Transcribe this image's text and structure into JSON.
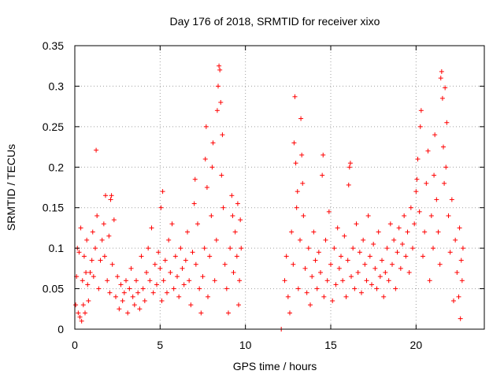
{
  "chart_data": {
    "type": "scatter",
    "title": "Day 176 of 2018, SRMTID for receiver xixo",
    "xlabel": "GPS time / hours",
    "ylabel": "SRMTID / TECUs",
    "xlim": [
      0,
      24
    ],
    "ylim": [
      0,
      0.35
    ],
    "xticks": [
      0,
      5,
      10,
      15,
      20
    ],
    "xtick_labels": [
      "0",
      "5",
      "10",
      "15",
      "20"
    ],
    "yticks": [
      0,
      0.05,
      0.1,
      0.15,
      0.2,
      0.25,
      0.3,
      0.35
    ],
    "ytick_labels": [
      "0",
      "0.05",
      "0.1",
      "0.15",
      "0.2",
      "0.25",
      "0.3",
      "0.35"
    ],
    "grid": true,
    "marker": "+",
    "color": "#ff0000",
    "series": [
      {
        "name": "SRMTID",
        "points": [
          [
            0.05,
            0.03
          ],
          [
            0.1,
            0.065
          ],
          [
            0.15,
            0.1
          ],
          [
            0.2,
            0.02
          ],
          [
            0.25,
            0.095
          ],
          [
            0.3,
            0.015
          ],
          [
            0.35,
            0.125
          ],
          [
            0.4,
            0.01
          ],
          [
            0.45,
            0.06
          ],
          [
            0.5,
            0.03
          ],
          [
            0.55,
            0.09
          ],
          [
            0.6,
            0.02
          ],
          [
            0.65,
            0.07
          ],
          [
            0.7,
            0.11
          ],
          [
            0.75,
            0.055
          ],
          [
            0.8,
            0.035
          ],
          [
            0.9,
            0.07
          ],
          [
            1.0,
            0.085
          ],
          [
            1.05,
            0.12
          ],
          [
            1.1,
            0.065
          ],
          [
            1.2,
            0.1
          ],
          [
            1.25,
            0.221
          ],
          [
            1.3,
            0.14
          ],
          [
            1.4,
            0.05
          ],
          [
            1.5,
            0.085
          ],
          [
            1.6,
            0.11
          ],
          [
            1.7,
            0.13
          ],
          [
            1.75,
            0.09
          ],
          [
            1.8,
            0.165
          ],
          [
            1.9,
            0.06
          ],
          [
            2.0,
            0.115
          ],
          [
            2.05,
            0.045
          ],
          [
            2.1,
            0.16
          ],
          [
            2.15,
            0.165
          ],
          [
            2.2,
            0.08
          ],
          [
            2.3,
            0.135
          ],
          [
            2.4,
            0.04
          ],
          [
            2.5,
            0.065
          ],
          [
            2.6,
            0.025
          ],
          [
            2.7,
            0.055
          ],
          [
            2.8,
            0.035
          ],
          [
            2.9,
            0.045
          ],
          [
            3.0,
            0.06
          ],
          [
            3.1,
            0.02
          ],
          [
            3.2,
            0.05
          ],
          [
            3.3,
            0.075
          ],
          [
            3.4,
            0.04
          ],
          [
            3.5,
            0.03
          ],
          [
            3.6,
            0.06
          ],
          [
            3.7,
            0.045
          ],
          [
            3.8,
            0.025
          ],
          [
            3.9,
            0.09
          ],
          [
            4.0,
            0.05
          ],
          [
            4.1,
            0.035
          ],
          [
            4.2,
            0.07
          ],
          [
            4.3,
            0.1
          ],
          [
            4.4,
            0.06
          ],
          [
            4.5,
            0.125
          ],
          [
            4.6,
            0.045
          ],
          [
            4.7,
            0.08
          ],
          [
            4.8,
            0.055
          ],
          [
            4.9,
            0.095
          ],
          [
            5.0,
            0.075
          ],
          [
            5.05,
            0.15
          ],
          [
            5.1,
            0.035
          ],
          [
            5.15,
            0.17
          ],
          [
            5.2,
            0.06
          ],
          [
            5.3,
            0.085
          ],
          [
            5.4,
            0.045
          ],
          [
            5.5,
            0.11
          ],
          [
            5.6,
            0.07
          ],
          [
            5.7,
            0.13
          ],
          [
            5.8,
            0.05
          ],
          [
            5.9,
            0.09
          ],
          [
            6.0,
            0.065
          ],
          [
            6.1,
            0.04
          ],
          [
            6.2,
            0.1
          ],
          [
            6.3,
            0.075
          ],
          [
            6.4,
            0.055
          ],
          [
            6.5,
            0.085
          ],
          [
            6.6,
            0.12
          ],
          [
            6.7,
            0.06
          ],
          [
            6.8,
            0.03
          ],
          [
            6.9,
            0.095
          ],
          [
            7.0,
            0.155
          ],
          [
            7.05,
            0.185
          ],
          [
            7.1,
            0.08
          ],
          [
            7.2,
            0.13
          ],
          [
            7.3,
            0.05
          ],
          [
            7.4,
            0.02
          ],
          [
            7.5,
            0.065
          ],
          [
            7.6,
            0.1
          ],
          [
            7.65,
            0.21
          ],
          [
            7.7,
            0.25
          ],
          [
            7.75,
            0.175
          ],
          [
            7.8,
            0.04
          ],
          [
            7.9,
            0.09
          ],
          [
            8.0,
            0.14
          ],
          [
            8.05,
            0.2
          ],
          [
            8.1,
            0.23
          ],
          [
            8.2,
            0.06
          ],
          [
            8.3,
            0.11
          ],
          [
            8.35,
            0.27
          ],
          [
            8.4,
            0.3
          ],
          [
            8.45,
            0.325
          ],
          [
            8.5,
            0.32
          ],
          [
            8.55,
            0.28
          ],
          [
            8.6,
            0.19
          ],
          [
            8.65,
            0.24
          ],
          [
            8.7,
            0.15
          ],
          [
            8.8,
            0.08
          ],
          [
            8.9,
            0.05
          ],
          [
            9.0,
            0.02
          ],
          [
            9.1,
            0.1
          ],
          [
            9.2,
            0.165
          ],
          [
            9.25,
            0.14
          ],
          [
            9.3,
            0.07
          ],
          [
            9.4,
            0.12
          ],
          [
            9.5,
            0.09
          ],
          [
            9.55,
            0.155
          ],
          [
            9.6,
            0.03
          ],
          [
            9.65,
            0.06
          ],
          [
            9.7,
            0.135
          ],
          [
            9.75,
            0.1
          ],
          [
            12.1,
            0.0
          ],
          [
            12.3,
            0.06
          ],
          [
            12.4,
            0.09
          ],
          [
            12.5,
            0.04
          ],
          [
            12.6,
            0.02
          ],
          [
            12.7,
            0.12
          ],
          [
            12.8,
            0.08
          ],
          [
            12.85,
            0.23
          ],
          [
            12.9,
            0.287
          ],
          [
            12.95,
            0.205
          ],
          [
            13.0,
            0.15
          ],
          [
            13.05,
            0.17
          ],
          [
            13.1,
            0.05
          ],
          [
            13.2,
            0.11
          ],
          [
            13.25,
            0.26
          ],
          [
            13.3,
            0.215
          ],
          [
            13.35,
            0.18
          ],
          [
            13.4,
            0.14
          ],
          [
            13.5,
            0.075
          ],
          [
            13.6,
            0.045
          ],
          [
            13.7,
            0.1
          ],
          [
            13.8,
            0.03
          ],
          [
            13.9,
            0.065
          ],
          [
            14.0,
            0.12
          ],
          [
            14.1,
            0.085
          ],
          [
            14.2,
            0.05
          ],
          [
            14.3,
            0.095
          ],
          [
            14.4,
            0.07
          ],
          [
            14.5,
            0.19
          ],
          [
            14.55,
            0.215
          ],
          [
            14.6,
            0.04
          ],
          [
            14.7,
            0.11
          ],
          [
            14.8,
            0.06
          ],
          [
            14.9,
            0.145
          ],
          [
            15.0,
            0.08
          ],
          [
            15.1,
            0.035
          ],
          [
            15.2,
            0.1
          ],
          [
            15.3,
            0.055
          ],
          [
            15.4,
            0.125
          ],
          [
            15.5,
            0.075
          ],
          [
            15.6,
            0.09
          ],
          [
            15.7,
            0.06
          ],
          [
            15.8,
            0.115
          ],
          [
            15.9,
            0.04
          ],
          [
            16.0,
            0.085
          ],
          [
            16.05,
            0.178
          ],
          [
            16.1,
            0.2
          ],
          [
            16.15,
            0.205
          ],
          [
            16.2,
            0.065
          ],
          [
            16.3,
            0.1
          ],
          [
            16.4,
            0.05
          ],
          [
            16.5,
            0.13
          ],
          [
            16.6,
            0.07
          ],
          [
            16.7,
            0.095
          ],
          [
            16.8,
            0.045
          ],
          [
            16.9,
            0.11
          ],
          [
            17.0,
            0.08
          ],
          [
            17.1,
            0.06
          ],
          [
            17.2,
            0.14
          ],
          [
            17.3,
            0.09
          ],
          [
            17.4,
            0.055
          ],
          [
            17.5,
            0.105
          ],
          [
            17.6,
            0.075
          ],
          [
            17.7,
            0.05
          ],
          [
            17.8,
            0.12
          ],
          [
            17.9,
            0.065
          ],
          [
            18.0,
            0.085
          ],
          [
            18.1,
            0.04
          ],
          [
            18.2,
            0.07
          ],
          [
            18.3,
            0.1
          ],
          [
            18.4,
            0.06
          ],
          [
            18.5,
            0.13
          ],
          [
            18.6,
            0.08
          ],
          [
            18.7,
            0.11
          ],
          [
            18.8,
            0.05
          ],
          [
            18.9,
            0.095
          ],
          [
            19.0,
            0.125
          ],
          [
            19.1,
            0.075
          ],
          [
            19.2,
            0.105
          ],
          [
            19.3,
            0.14
          ],
          [
            19.4,
            0.09
          ],
          [
            19.5,
            0.12
          ],
          [
            19.6,
            0.07
          ],
          [
            19.7,
            0.15
          ],
          [
            19.8,
            0.1
          ],
          [
            19.9,
            0.13
          ],
          [
            20.0,
            0.17
          ],
          [
            20.05,
            0.185
          ],
          [
            20.1,
            0.21
          ],
          [
            20.2,
            0.145
          ],
          [
            20.25,
            0.25
          ],
          [
            20.3,
            0.27
          ],
          [
            20.4,
            0.09
          ],
          [
            20.5,
            0.12
          ],
          [
            20.6,
            0.18
          ],
          [
            20.7,
            0.22
          ],
          [
            20.8,
            0.06
          ],
          [
            20.9,
            0.14
          ],
          [
            21.0,
            0.1
          ],
          [
            21.05,
            0.19
          ],
          [
            21.1,
            0.24
          ],
          [
            21.2,
            0.16
          ],
          [
            21.3,
            0.12
          ],
          [
            21.4,
            0.08
          ],
          [
            21.45,
            0.31
          ],
          [
            21.5,
            0.318
          ],
          [
            21.55,
            0.285
          ],
          [
            21.6,
            0.225
          ],
          [
            21.65,
            0.18
          ],
          [
            21.7,
            0.298
          ],
          [
            21.75,
            0.2
          ],
          [
            21.8,
            0.255
          ],
          [
            21.9,
            0.14
          ],
          [
            22.0,
            0.095
          ],
          [
            22.1,
            0.16
          ],
          [
            22.2,
            0.035
          ],
          [
            22.3,
            0.11
          ],
          [
            22.4,
            0.07
          ],
          [
            22.5,
            0.04
          ],
          [
            22.55,
            0.125
          ],
          [
            22.6,
            0.013
          ],
          [
            22.65,
            0.085
          ],
          [
            22.7,
            0.06
          ],
          [
            22.75,
            0.1
          ]
        ]
      }
    ]
  }
}
